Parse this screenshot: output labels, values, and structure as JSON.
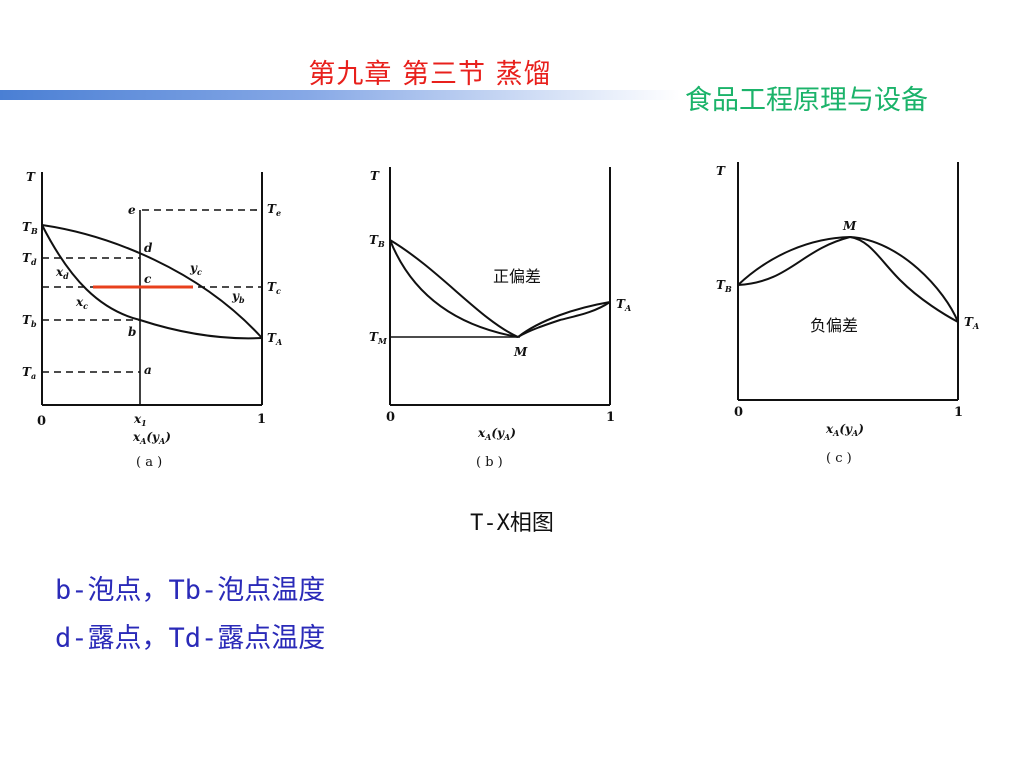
{
  "header": {
    "title": "第九章  第三节    蒸馏",
    "subtitle": "食品工程原理与设备"
  },
  "figures": {
    "a": {
      "axis_T": "T",
      "x_origin": "0",
      "x_one": "1",
      "x1": "x",
      "x1_sub": "1",
      "xlabel": "x",
      "xlabel_sub": "A",
      "xlabel_paren": "(y",
      "caption": "( a )",
      "left_labels": {
        "TB": "T",
        "TB_sub": "B",
        "Td": "T",
        "Td_sub": "d",
        "Tb": "T",
        "Tb_sub": "b",
        "Ta": "T",
        "Ta_sub": "a"
      },
      "right_labels": {
        "Te": "T",
        "Te_sub": "e",
        "Tc": "T",
        "Tc_sub": "c",
        "TA": "T",
        "TA_sub": "A"
      },
      "points": {
        "e": "e",
        "d": "d",
        "c": "c",
        "b": "b",
        "a": "a"
      },
      "curve_labels": {
        "xd": "x",
        "xd_sub": "d",
        "xc": "x",
        "xc_sub": "c",
        "yc": "y",
        "yc_sub": "c",
        "yb": "y",
        "yb_sub": "b"
      }
    },
    "b": {
      "axis_T": "T",
      "TB": "T",
      "TB_sub": "B",
      "TM": "T",
      "TM_sub": "M",
      "TA": "T",
      "TA_sub": "A",
      "M": "M",
      "note": "正偏差",
      "x_origin": "0",
      "x_one": "1",
      "caption": "( b )"
    },
    "c": {
      "axis_T": "T",
      "TB": "T",
      "TB_sub": "B",
      "TA": "T",
      "TA_sub": "A",
      "M": "M",
      "note": "负偏差",
      "x_origin": "0",
      "x_one": "1",
      "caption": "( c )"
    }
  },
  "figure_caption": "T-X相图",
  "notes": {
    "line1": "b-泡点，Tb-泡点温度",
    "line2": "d-露点，Td-露点温度"
  },
  "colors": {
    "title": "#e8201c",
    "subtitle": "#1bb36a",
    "notes": "#2a2ab8",
    "tie_line": "#e8401c",
    "bar_start": "#4a7fd4"
  }
}
